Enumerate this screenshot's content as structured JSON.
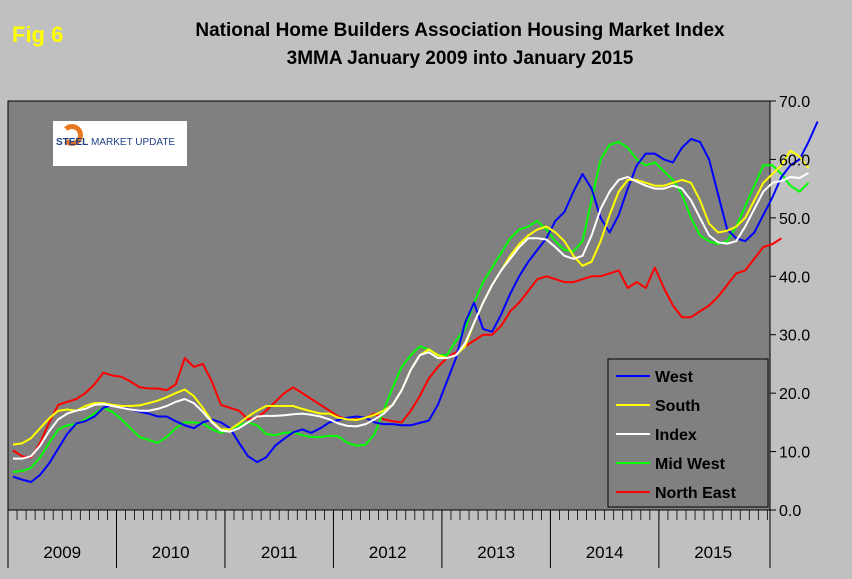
{
  "fig_label": "Fig 6",
  "logo": {
    "steel_text": "STEEL",
    "rest_text": " MARKET UPDATE"
  },
  "chart_data": {
    "type": "line",
    "title": "National Home Builders Association Housing Market Index",
    "subtitle": "3MMA January 2009 into January 2015",
    "xlabel": "",
    "ylabel": "",
    "x_year_labels": [
      "2009",
      "2010",
      "2011",
      "2012",
      "2013",
      "2014",
      "2015"
    ],
    "x_start": "2009-01",
    "ylim": [
      0,
      70
    ],
    "yticks": [
      "0.0",
      "10.0",
      "20.0",
      "30.0",
      "40.0",
      "50.0",
      "60.0",
      "70.0"
    ],
    "y_axis_side": "right",
    "grid": false,
    "legend_position": "bottom-right",
    "series": [
      {
        "name": "West",
        "color": "#0000ff",
        "values": [
          5.7,
          5.2,
          4.8,
          6.0,
          8.0,
          10.5,
          13.0,
          14.8,
          15.2,
          16.0,
          17.5,
          18.0,
          17.7,
          17.2,
          16.8,
          16.5,
          16.0,
          16.0,
          15.2,
          14.5,
          14.0,
          15.0,
          15.5,
          15.0,
          14.0,
          11.5,
          9.2,
          8.2,
          9.0,
          11.0,
          12.2,
          13.3,
          13.8,
          13.2,
          14.0,
          15.0,
          15.4,
          15.8,
          16.0,
          15.8,
          15.0,
          14.7,
          14.7,
          14.5,
          14.5,
          14.9,
          15.3,
          18.0,
          22.0,
          26.0,
          32.0,
          35.5,
          31.0,
          30.5,
          33.5,
          37.0,
          40.0,
          42.5,
          44.5,
          46.5,
          49.5,
          51.0,
          54.5,
          57.5,
          55.0,
          50.0,
          47.5,
          50.5,
          55.0,
          59.0,
          61.0,
          61.0,
          60.0,
          59.5,
          62.0,
          63.5,
          63.0,
          60.0,
          54.0,
          48.0,
          46.5,
          46.0,
          47.5,
          50.5,
          53.5,
          57.0,
          59.0,
          60.0,
          63.0,
          66.5
        ]
      },
      {
        "name": "South",
        "color": "#ffff00",
        "values": [
          11.2,
          11.4,
          12.3,
          14.0,
          15.7,
          17.0,
          17.2,
          17.0,
          17.8,
          18.3,
          18.3,
          18.0,
          17.8,
          17.8,
          17.9,
          18.3,
          18.7,
          19.3,
          20.0,
          20.6,
          19.5,
          17.5,
          15.2,
          13.8,
          13.8,
          14.8,
          16.0,
          17.0,
          17.8,
          17.8,
          17.8,
          17.8,
          17.3,
          16.9,
          16.5,
          16.5,
          15.8,
          15.5,
          15.4,
          15.8,
          16.3,
          17.0,
          18.0,
          20.5,
          24.0,
          26.5,
          27.5,
          26.5,
          26.0,
          26.5,
          28.0,
          32.0,
          35.5,
          38.5,
          41.0,
          43.5,
          45.5,
          47.0,
          48.0,
          48.5,
          47.5,
          46.0,
          43.5,
          41.8,
          42.5,
          46.0,
          50.5,
          54.5,
          56.5,
          56.5,
          56.0,
          55.5,
          55.5,
          56.0,
          56.5,
          56.0,
          53.0,
          49.0,
          47.5,
          47.8,
          48.5,
          50.0,
          53.0,
          56.0,
          57.5,
          59.0,
          61.5,
          60.5,
          58.5
        ]
      },
      {
        "name": "Index",
        "color": "#ffffff",
        "values": [
          8.8,
          8.8,
          9.2,
          11.0,
          13.5,
          15.5,
          16.5,
          17.0,
          17.3,
          18.0,
          18.1,
          17.8,
          17.5,
          17.2,
          17.0,
          17.0,
          17.3,
          17.8,
          18.5,
          19.0,
          18.3,
          16.8,
          15.0,
          13.6,
          13.4,
          14.0,
          15.0,
          16.0,
          16.1,
          16.1,
          16.2,
          16.4,
          16.5,
          16.3,
          16.0,
          15.5,
          14.8,
          14.4,
          14.3,
          14.7,
          15.5,
          16.5,
          18.0,
          20.5,
          24.0,
          26.5,
          27.0,
          26.0,
          26.0,
          26.5,
          28.5,
          32.0,
          35.5,
          38.5,
          41.0,
          43.0,
          45.0,
          46.5,
          46.5,
          46.3,
          45.0,
          43.5,
          43.0,
          43.5,
          47.0,
          51.5,
          54.5,
          56.5,
          57.0,
          56.2,
          55.5,
          55.0,
          55.0,
          55.5,
          55.0,
          53.0,
          50.0,
          47.0,
          45.8,
          45.6,
          46.0,
          48.5,
          51.5,
          54.5,
          56.0,
          56.3,
          57.0,
          56.8,
          57.7
        ]
      },
      {
        "name": "Mid West",
        "color": "#00ff00",
        "values": [
          6.5,
          6.7,
          7.2,
          9.0,
          11.5,
          13.8,
          14.5,
          14.7,
          15.5,
          16.5,
          17.5,
          16.8,
          15.5,
          14.0,
          12.5,
          12.0,
          11.5,
          12.5,
          14.0,
          15.0,
          15.0,
          14.8,
          13.8,
          13.2,
          13.8,
          14.5,
          15.0,
          14.5,
          13.0,
          12.8,
          13.2,
          13.3,
          12.8,
          12.5,
          12.5,
          12.7,
          12.6,
          11.5,
          11.0,
          11.2,
          13.0,
          17.0,
          21.0,
          24.5,
          26.5,
          28.0,
          27.5,
          26.5,
          26.5,
          29.0,
          31.0,
          35.5,
          39.0,
          41.5,
          44.0,
          46.5,
          48.0,
          48.5,
          49.5,
          48.0,
          46.0,
          44.5,
          44.3,
          46.0,
          53.0,
          60.0,
          62.5,
          63.0,
          62.0,
          60.0,
          59.0,
          59.5,
          58.0,
          56.5,
          54.0,
          50.0,
          47.0,
          46.0,
          45.5,
          46.0,
          48.5,
          52.0,
          55.5,
          59.0,
          59.0,
          57.5,
          55.5,
          54.5,
          56.0
        ]
      },
      {
        "name": "North East",
        "color": "#ff0000",
        "values": [
          10.2,
          9.2,
          9.0,
          11.5,
          15.0,
          18.0,
          18.5,
          19.0,
          20.0,
          21.5,
          23.5,
          23.0,
          22.8,
          22.0,
          21.0,
          20.8,
          20.8,
          20.5,
          21.5,
          26.0,
          24.5,
          25.0,
          22.0,
          18.0,
          17.5,
          17.0,
          15.5,
          15.8,
          17.0,
          18.5,
          20.0,
          21.0,
          20.0,
          19.0,
          18.0,
          17.0,
          16.0,
          15.5,
          15.5,
          15.8,
          16.5,
          15.5,
          15.2,
          15.0,
          17.0,
          19.5,
          22.5,
          24.5,
          26.0,
          27.0,
          28.0,
          29.0,
          30.0,
          30.0,
          31.5,
          34.0,
          35.5,
          37.5,
          39.5,
          40.0,
          39.5,
          39.0,
          39.0,
          39.5,
          40.0,
          40.0,
          40.5,
          41.0,
          38.0,
          39.0,
          38.0,
          41.5,
          38.0,
          35.0,
          33.0,
          33.0,
          34.0,
          35.0,
          36.5,
          38.5,
          40.5,
          41.0,
          43.0,
          45.0,
          45.5,
          46.5
        ]
      }
    ]
  }
}
